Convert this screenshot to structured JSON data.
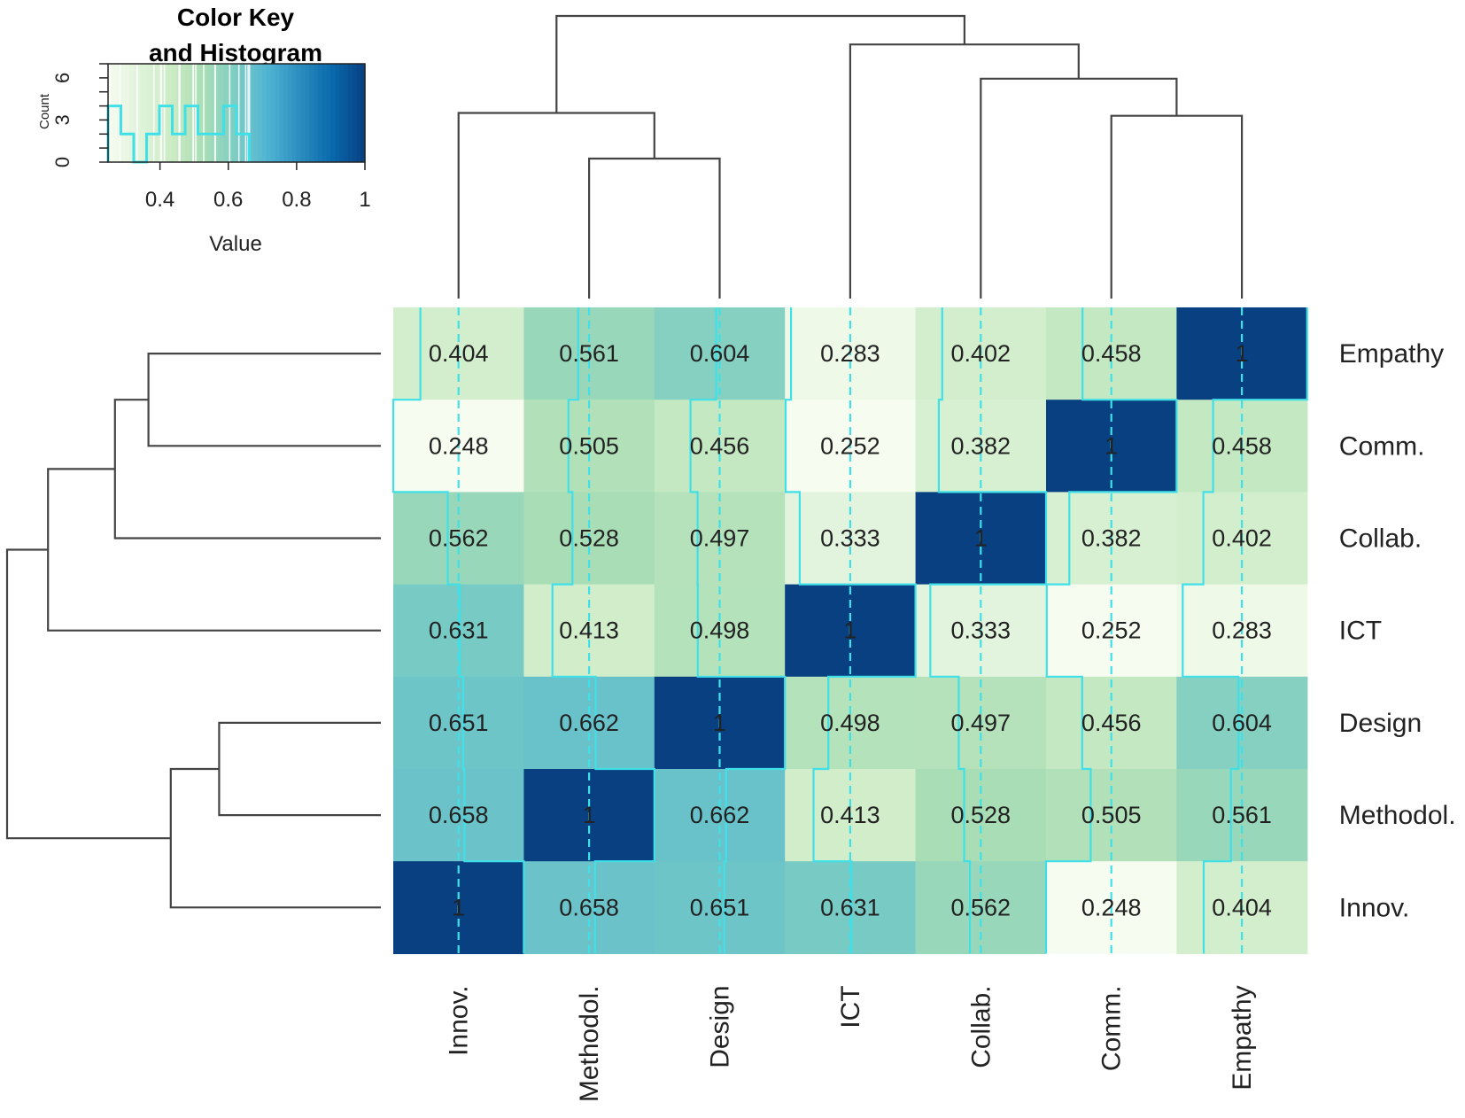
{
  "chart_data": {
    "type": "heatmap",
    "title": "",
    "columns": [
      "Innov.",
      "Methodol.",
      "Design",
      "ICT",
      "Collab.",
      "Comm.",
      "Empathy"
    ],
    "rows": [
      "Empathy",
      "Comm.",
      "Collab.",
      "ICT",
      "Design",
      "Methodol.",
      "Innov."
    ],
    "values": [
      [
        0.404,
        0.561,
        0.604,
        0.283,
        0.402,
        0.458,
        1
      ],
      [
        0.248,
        0.505,
        0.456,
        0.252,
        0.382,
        1,
        0.458
      ],
      [
        0.562,
        0.528,
        0.497,
        0.333,
        1,
        0.382,
        0.402
      ],
      [
        0.631,
        0.413,
        0.498,
        1,
        0.333,
        0.252,
        0.283
      ],
      [
        0.651,
        0.662,
        1,
        0.498,
        0.497,
        0.456,
        0.604
      ],
      [
        0.658,
        1,
        0.662,
        0.413,
        0.528,
        0.505,
        0.561
      ],
      [
        1,
        0.658,
        0.651,
        0.631,
        0.562,
        0.248,
        0.404
      ]
    ],
    "cell_labels": [
      [
        "0.404",
        "0.561",
        "0.604",
        "0.283",
        "0.402",
        "0.458",
        "1"
      ],
      [
        "0.248",
        "0.505",
        "0.456",
        "0.252",
        "0.382",
        "1",
        "0.458"
      ],
      [
        "0.562",
        "0.528",
        "0.497",
        "0.333",
        "1",
        "0.382",
        "0.402"
      ],
      [
        "0.631",
        "0.413",
        "0.498",
        "1",
        "0.333",
        "0.252",
        "0.283"
      ],
      [
        "0.651",
        "0.662",
        "1",
        "0.498",
        "0.497",
        "0.456",
        "0.604"
      ],
      [
        "0.658",
        "1",
        "0.662",
        "0.413",
        "0.528",
        "0.505",
        "0.561"
      ],
      [
        "1",
        "0.658",
        "0.651",
        "0.631",
        "0.562",
        "0.248",
        "0.404"
      ]
    ],
    "value_range": [
      0.248,
      1
    ],
    "colorscale": [
      "#f7fcf0",
      "#e0f3db",
      "#ccebc5",
      "#a8ddb5",
      "#7bccc4",
      "#4eb3d3",
      "#2b8cbe",
      "#0868ac",
      "#084081"
    ],
    "trace_color": "#40e0e8",
    "line_color": "#444444",
    "color_key": {
      "title_line1": "Color Key",
      "title_line2": "and Histogram",
      "xlabel": "Value",
      "ylabel": "Count",
      "xticks": [
        0.4,
        0.6,
        0.8,
        1
      ],
      "xtick_labels": [
        "0.4",
        "0.6",
        "0.8",
        "1"
      ],
      "yticks": [
        0,
        3,
        6
      ],
      "ytick_labels": [
        "0",
        "3",
        "6"
      ],
      "xlim": [
        0.248,
        1
      ],
      "ylim": [
        0,
        7
      ],
      "breaks": [
        0.248,
        0.2856,
        0.3232,
        0.3608,
        0.3984,
        0.436,
        0.4736,
        0.5112,
        0.5488,
        0.5864,
        0.624,
        0.6616
      ],
      "counts": [
        4,
        2,
        0,
        2,
        4,
        2,
        4,
        2,
        2,
        4,
        2
      ]
    },
    "col_dendrogram": [
      {
        "a": 1,
        "b": 2,
        "h": 0.5
      },
      {
        "a": 0,
        "b": 1.5,
        "h": 0.66
      },
      {
        "a": 5,
        "b": 6,
        "h": 0.65
      },
      {
        "a": 4,
        "b": 5.5,
        "h": 0.78
      },
      {
        "a": 3,
        "b": 4.75,
        "h": 0.9
      },
      {
        "a": 0.75,
        "b": 3.875,
        "h": 1.0
      }
    ],
    "row_dendrogram": [
      {
        "a": 0,
        "b": 1,
        "h": 0.62
      },
      {
        "a": 0.5,
        "b": 2,
        "h": 0.71
      },
      {
        "a": 1.25,
        "b": 3,
        "h": 0.89
      },
      {
        "a": 4,
        "b": 5,
        "h": 0.43
      },
      {
        "a": 4.5,
        "b": 6,
        "h": 0.56
      },
      {
        "a": 2.125,
        "b": 5.25,
        "h": 1.0
      }
    ]
  }
}
